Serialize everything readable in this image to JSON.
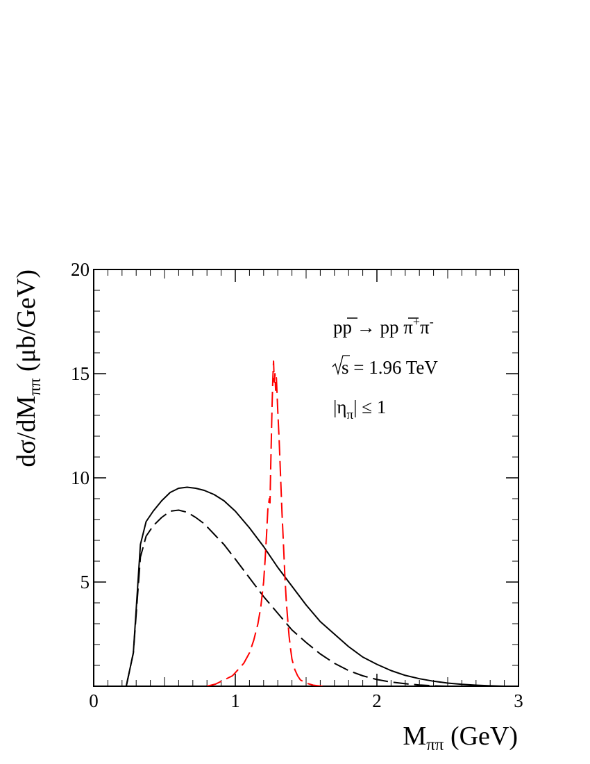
{
  "chart_data": {
    "type": "line",
    "title": "",
    "xlabel": {
      "main": "M",
      "sub": "ππ",
      "unit": " (GeV)"
    },
    "ylabel": {
      "part1": "dσ/dM",
      "sub": "ππ",
      "unit": " (μb/GeV)"
    },
    "xlim": [
      0,
      3
    ],
    "ylim": [
      0,
      20
    ],
    "x_ticks": [
      0,
      1,
      2,
      3
    ],
    "y_ticks": [
      5,
      10,
      15,
      20
    ],
    "x_tick_labels": [
      "0",
      "1",
      "2",
      "3"
    ],
    "y_tick_labels": [
      "5",
      "10",
      "15",
      "20"
    ],
    "grid": false,
    "annotations": {
      "process": {
        "lhs_p": "p",
        "lhs_pbar": "p",
        "arrow": " → ",
        "rhs_p": "p",
        "rhs_pbar": "p",
        "pi1": " π",
        "sup1": "+",
        "pi2": "π",
        "sup2": "-"
      },
      "energy": {
        "text": "s = 1.96 TeV"
      },
      "eta": {
        "open": "|η",
        "sub": "π",
        "close": "| ≤ 1"
      }
    },
    "series": [
      {
        "style": "solid",
        "color": "#000000",
        "x": [
          0.23,
          0.28,
          0.33,
          0.37,
          0.42,
          0.48,
          0.54,
          0.6,
          0.66,
          0.72,
          0.78,
          0.85,
          0.92,
          1.0,
          1.1,
          1.2,
          1.3,
          1.4,
          1.5,
          1.6,
          1.7,
          1.8,
          1.9,
          2.0,
          2.1,
          2.2,
          2.3,
          2.4,
          2.5,
          2.6,
          2.7,
          2.8,
          2.9
        ],
        "y": [
          0.0,
          1.6,
          6.8,
          7.9,
          8.4,
          8.9,
          9.3,
          9.5,
          9.55,
          9.5,
          9.4,
          9.2,
          8.9,
          8.4,
          7.6,
          6.7,
          5.7,
          4.8,
          3.9,
          3.1,
          2.5,
          1.9,
          1.4,
          1.05,
          0.75,
          0.52,
          0.36,
          0.24,
          0.15,
          0.09,
          0.05,
          0.02,
          0.0
        ]
      },
      {
        "style": "dashed",
        "color": "#000000",
        "x": [
          0.23,
          0.28,
          0.33,
          0.37,
          0.42,
          0.48,
          0.54,
          0.6,
          0.66,
          0.72,
          0.78,
          0.85,
          0.92,
          1.0,
          1.1,
          1.2,
          1.3,
          1.4,
          1.5,
          1.6,
          1.7,
          1.8,
          1.9,
          2.0,
          2.1,
          2.2,
          2.3,
          2.4,
          2.5
        ],
        "y": [
          0.0,
          1.6,
          6.2,
          7.2,
          7.7,
          8.1,
          8.4,
          8.45,
          8.35,
          8.1,
          7.8,
          7.3,
          6.8,
          6.1,
          5.2,
          4.3,
          3.5,
          2.7,
          2.1,
          1.55,
          1.1,
          0.75,
          0.5,
          0.32,
          0.2,
          0.12,
          0.06,
          0.02,
          0.0
        ]
      },
      {
        "style": "dashed",
        "color": "#ff0000",
        "x": [
          0.8,
          0.86,
          0.92,
          0.98,
          1.02,
          1.06,
          1.1,
          1.13,
          1.16,
          1.18,
          1.2,
          1.21,
          1.22,
          1.23,
          1.24,
          1.245,
          1.25,
          1.255,
          1.26,
          1.265,
          1.27,
          1.275,
          1.28,
          1.285,
          1.29,
          1.3,
          1.31,
          1.32,
          1.33,
          1.34,
          1.35,
          1.36,
          1.37,
          1.38,
          1.39,
          1.4,
          1.42,
          1.44,
          1.46,
          1.5,
          1.55,
          1.6,
          1.65
        ],
        "y": [
          0.0,
          0.1,
          0.3,
          0.5,
          0.8,
          1.1,
          1.6,
          2.2,
          3.0,
          3.8,
          5.0,
          6.0,
          7.2,
          8.5,
          9.0,
          8.8,
          10.5,
          12.0,
          13.5,
          14.8,
          15.6,
          14.6,
          15.0,
          14.2,
          14.8,
          13.2,
          11.8,
          10.0,
          8.3,
          6.8,
          5.3,
          4.1,
          3.2,
          2.4,
          1.8,
          1.3,
          0.8,
          0.5,
          0.3,
          0.15,
          0.05,
          0.01,
          0.0
        ]
      }
    ]
  }
}
